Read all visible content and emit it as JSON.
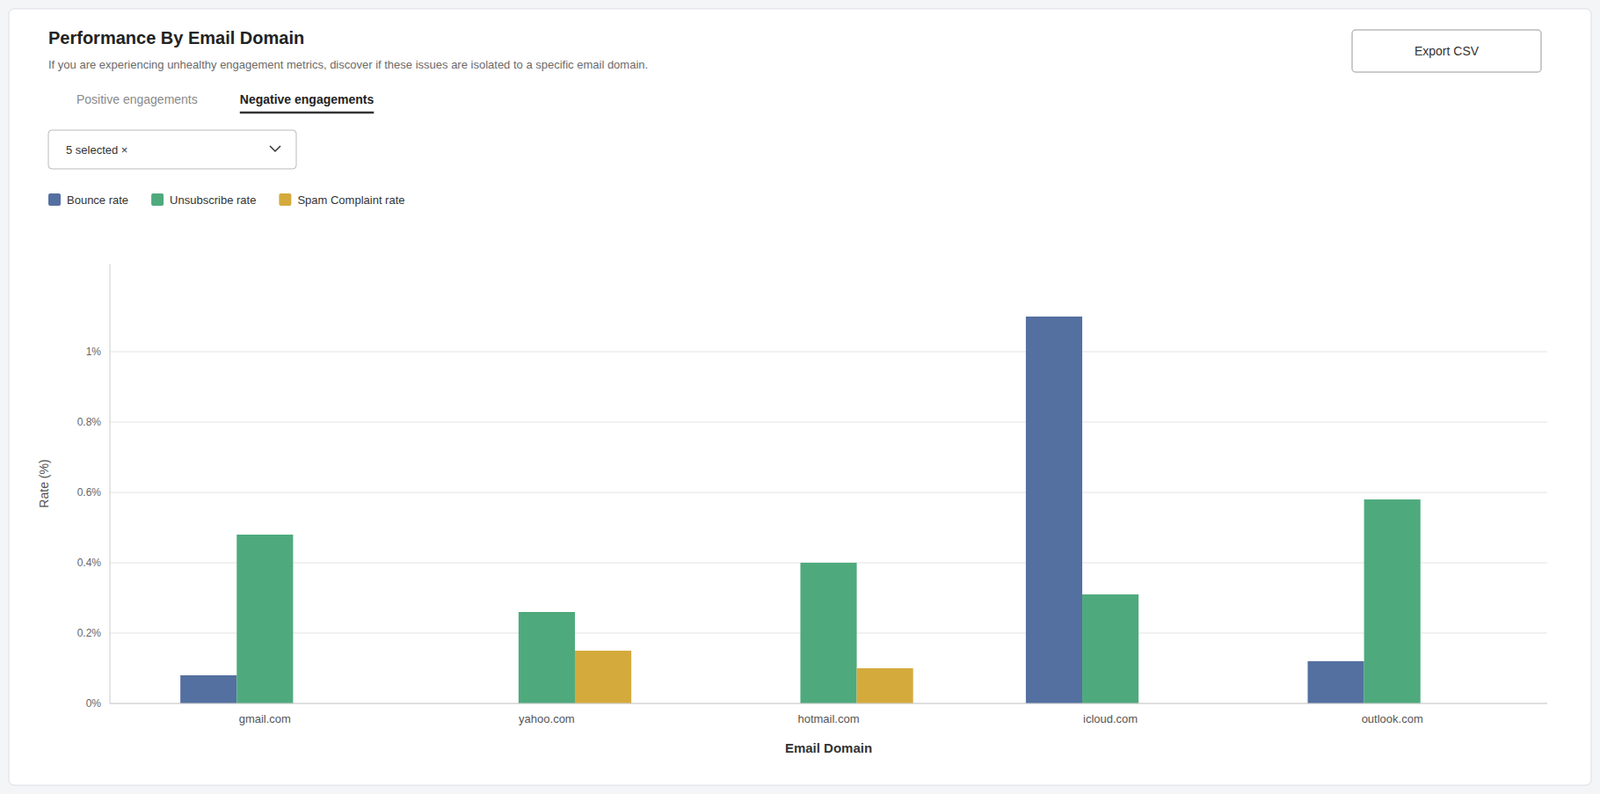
{
  "chart_data": {
    "type": "bar",
    "title": "Performance By Email Domain",
    "subtitle": "If you are experiencing unhealthy engagement metrics, discover if these issues are isolated to a specific email domain.",
    "tab_inactive": "Positive engagements",
    "tab_active": "Negative engagements",
    "dropdown_label": "5 selected ×",
    "export_button": "Export CSV",
    "xlabel": "Email Domain",
    "ylabel": "Rate (%)",
    "categories": [
      "gmail.com",
      "yahoo.com",
      "hotmail.com",
      "icloud.com",
      "outlook.com"
    ],
    "series": [
      {
        "name": "Bounce rate",
        "color": "#5470a0",
        "values": [
          0.08,
          0.0,
          0.0,
          1.1,
          0.12
        ]
      },
      {
        "name": "Unsubscribe rate",
        "color": "#4eaa7d",
        "values": [
          0.48,
          0.26,
          0.4,
          0.31,
          0.58
        ]
      },
      {
        "name": "Spam Complaint rate",
        "color": "#d4aa3c",
        "values": [
          0.0,
          0.15,
          0.1,
          0.0,
          0.0
        ]
      }
    ],
    "ylim": [
      0,
      1.25
    ],
    "yticks": [
      {
        "value": 0,
        "label": "0%"
      },
      {
        "value": 0.2,
        "label": "0.2%"
      },
      {
        "value": 0.4,
        "label": "0.4%"
      },
      {
        "value": 0.6,
        "label": "0.6%"
      },
      {
        "value": 0.8,
        "label": "0.8%"
      },
      {
        "value": 1.0,
        "label": "1%"
      }
    ],
    "grid": true,
    "legend": "top-left"
  }
}
